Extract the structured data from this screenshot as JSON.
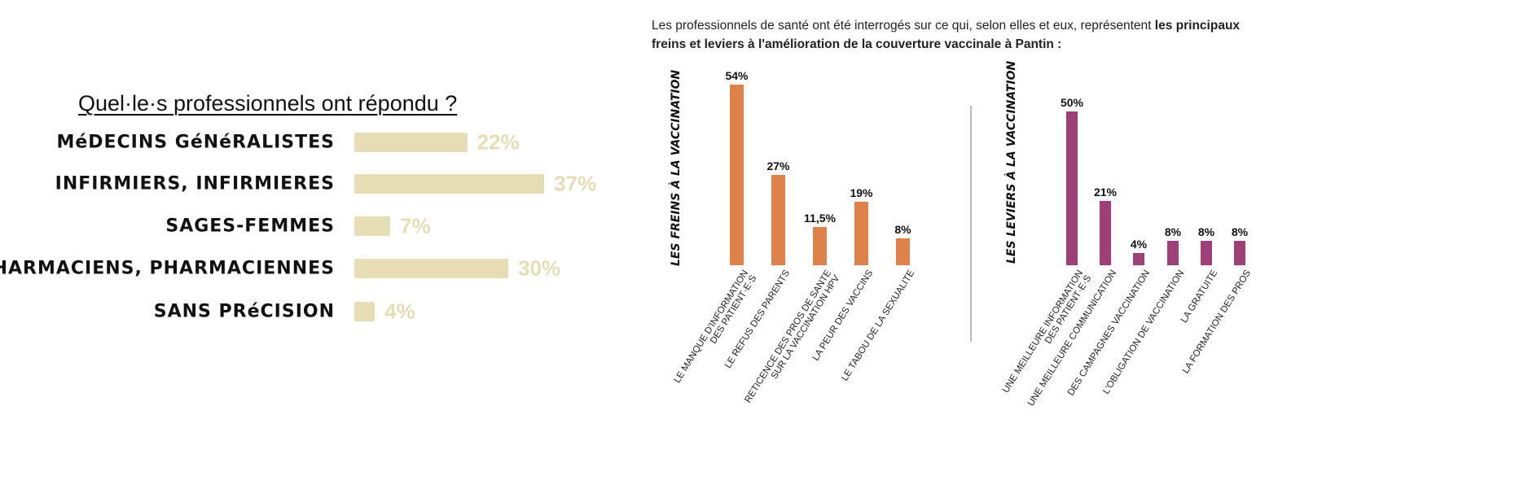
{
  "intro": {
    "text_plain": "Les professionnels de santé ont été interrogés sur ce qui, selon elles et eux, représentent ",
    "text_bold": "les principaux freins et leviers à l'amélioration de la couverture vaccinale à Pantin :"
  },
  "colors": {
    "respondents": "#e6ddb4",
    "freins": "#df824a",
    "leviers": "#9e3f77"
  },
  "chart_data": [
    {
      "type": "bar",
      "orientation": "horizontal",
      "title": "Quel·le·s professionnels ont répondu ?",
      "categories": [
        "MéDECINS GéNéRALISTES",
        "INFIRMIERS, INFIRMIERES",
        "SAGES-FEMMES",
        "PHARMACIENS, PHARMACIENNES",
        "SANS PRéCISION"
      ],
      "values": [
        22,
        37,
        7,
        30,
        4
      ],
      "labels": [
        "22%",
        "37%",
        "7%",
        "30%",
        "4%"
      ],
      "unit": "%"
    },
    {
      "type": "bar",
      "title": "LES FREINS À LA VACCINATION",
      "categories": [
        "LE MANQUE D'INFORMATION\nDES PATIENT·E·S",
        "LE REFUS DES PARENTS",
        "RETICENCE DES PROS DE SANTE\nSUR LA VACCINATION HPV",
        "LA PEUR DES VACCINS",
        "LE TABOU DE LA SEXUALITE"
      ],
      "values": [
        54,
        27,
        11.5,
        19,
        8
      ],
      "labels": [
        "54%",
        "27%",
        "11,5%",
        "19%",
        "8%"
      ],
      "unit": "%"
    },
    {
      "type": "bar",
      "title": "LES LEVIERS À LA VACCINATION",
      "categories": [
        "UNE MEILLEURE INFORMATION\nDES PATIENT·E·S",
        "UNE MEILLEURE COMMUNICATION",
        "DES CAMPAGNES VACCINATION",
        "L'OBLIGATION DE VACCINATION",
        "LA GRATUITE",
        "LA FORMATION DES PROS"
      ],
      "values": [
        50,
        21,
        4,
        8,
        8,
        8
      ],
      "labels": [
        "50%",
        "21%",
        "4%",
        "8%",
        "8%",
        "8%"
      ],
      "unit": "%"
    }
  ]
}
